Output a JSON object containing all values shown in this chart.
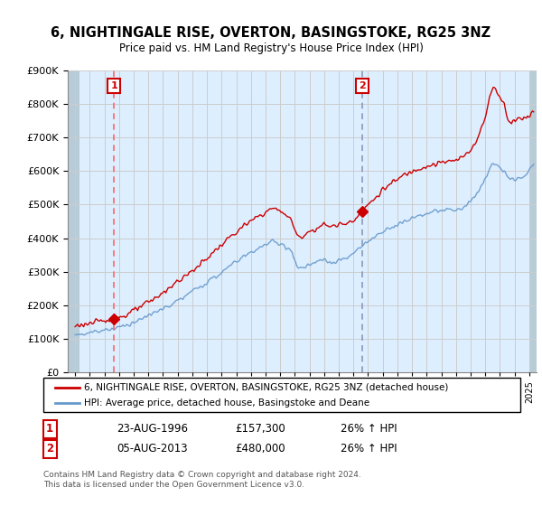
{
  "title1": "6, NIGHTINGALE RISE, OVERTON, BASINGSTOKE, RG25 3NZ",
  "title2": "Price paid vs. HM Land Registry's House Price Index (HPI)",
  "legend1": "6, NIGHTINGALE RISE, OVERTON, BASINGSTOKE, RG25 3NZ (detached house)",
  "legend2": "HPI: Average price, detached house, Basingstoke and Deane",
  "footnote": "Contains HM Land Registry data © Crown copyright and database right 2024.\nThis data is licensed under the Open Government Licence v3.0.",
  "sale1_date": "23-AUG-1996",
  "sale1_price": 157300,
  "sale1_pct": "26% ↑ HPI",
  "sale2_date": "05-AUG-2013",
  "sale2_price": 480000,
  "sale2_pct": "26% ↑ HPI",
  "sale1_x": 1996.65,
  "sale2_x": 2013.6,
  "ylim_min": 0,
  "ylim_max": 900000,
  "xlim_min": 1993.5,
  "xlim_max": 2025.5,
  "hpi_color": "#6699cc",
  "price_color": "#cc0000",
  "bg_color": "#ddeeff",
  "hatch_bg": "#c5d8e8",
  "grid_color": "#cccccc",
  "sale1_vline_color": "#ff6666",
  "sale2_vline_color": "#8899bb"
}
